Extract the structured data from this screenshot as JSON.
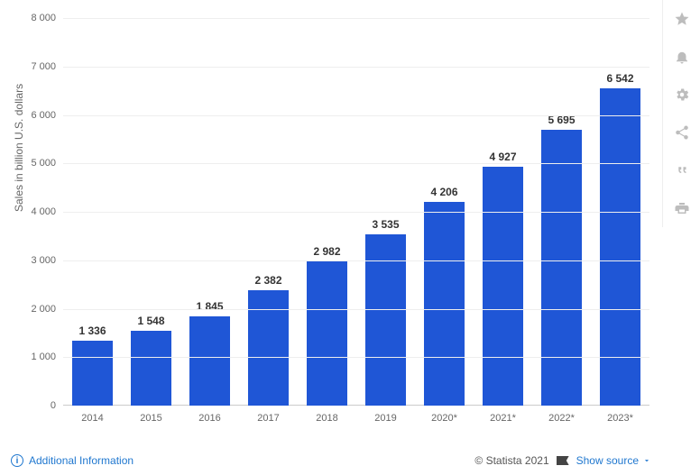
{
  "chart": {
    "type": "bar",
    "y_label": "Sales in billion U.S. dollars",
    "categories": [
      "2014",
      "2015",
      "2016",
      "2017",
      "2018",
      "2019",
      "2020*",
      "2021*",
      "2022*",
      "2023*"
    ],
    "values": [
      1336,
      1548,
      1845,
      2382,
      2982,
      3535,
      4206,
      4927,
      5695,
      6542
    ],
    "value_labels": [
      "1 336",
      "1 548",
      "1 845",
      "2 382",
      "2 982",
      "3 535",
      "4 206",
      "4 927",
      "5 695",
      "6 542"
    ],
    "bar_color": "#1f56d6",
    "ylim": [
      0,
      8000
    ],
    "ytick_step": 1000,
    "ytick_labels": [
      "0",
      "1 000",
      "2 000",
      "3 000",
      "4 000",
      "5 000",
      "6 000",
      "7 000",
      "8 000"
    ],
    "grid_color": "#eeeeee",
    "axis_color": "#cccccc",
    "background_color": "#ffffff",
    "value_label_fontsize": 12,
    "tick_fontsize": 11,
    "y_label_fontsize": 12,
    "bar_width_ratio": 0.7
  },
  "footer": {
    "additional_info": "Additional Information",
    "copyright": "© Statista 2021",
    "show_source": "Show source"
  },
  "toolbar": {
    "items": [
      "favorite",
      "alert",
      "settings",
      "share",
      "cite",
      "print"
    ]
  }
}
